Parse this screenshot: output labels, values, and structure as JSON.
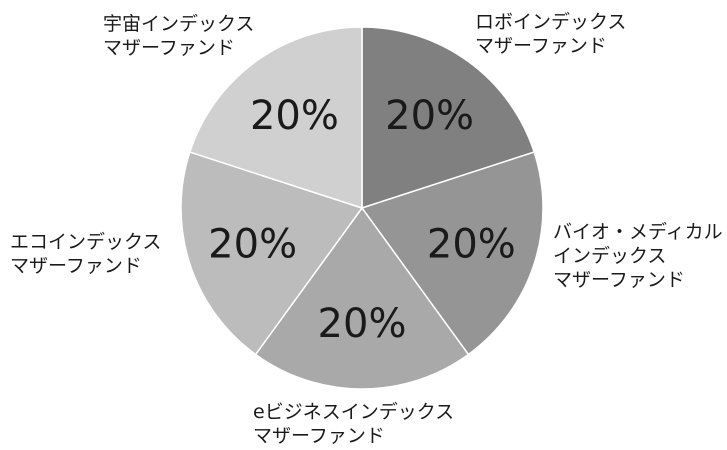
{
  "chart_data": {
    "type": "pie",
    "slices": [
      {
        "label_lines": [
          "ロボインデックス",
          "マザーファンド"
        ],
        "value": 20,
        "value_label": "20%",
        "color": "#808080"
      },
      {
        "label_lines": [
          "バイオ・メディカル",
          "インデックス",
          "マザーファンド"
        ],
        "value": 20,
        "value_label": "20%",
        "color": "#959595"
      },
      {
        "label_lines": [
          "eビジネスインデックス",
          "マザーファンド"
        ],
        "value": 20,
        "value_label": "20%",
        "color": "#a9a9a9"
      },
      {
        "label_lines": [
          "エコインデックス",
          "マザーファンド"
        ],
        "value": 20,
        "value_label": "20%",
        "color": "#bcbcbc"
      },
      {
        "label_lines": [
          "宇宙インデックス",
          "マザーファンド"
        ],
        "value": 20,
        "value_label": "20%",
        "color": "#d0d0d0"
      }
    ],
    "start_angle_deg": 0,
    "direction": "clockwise"
  }
}
